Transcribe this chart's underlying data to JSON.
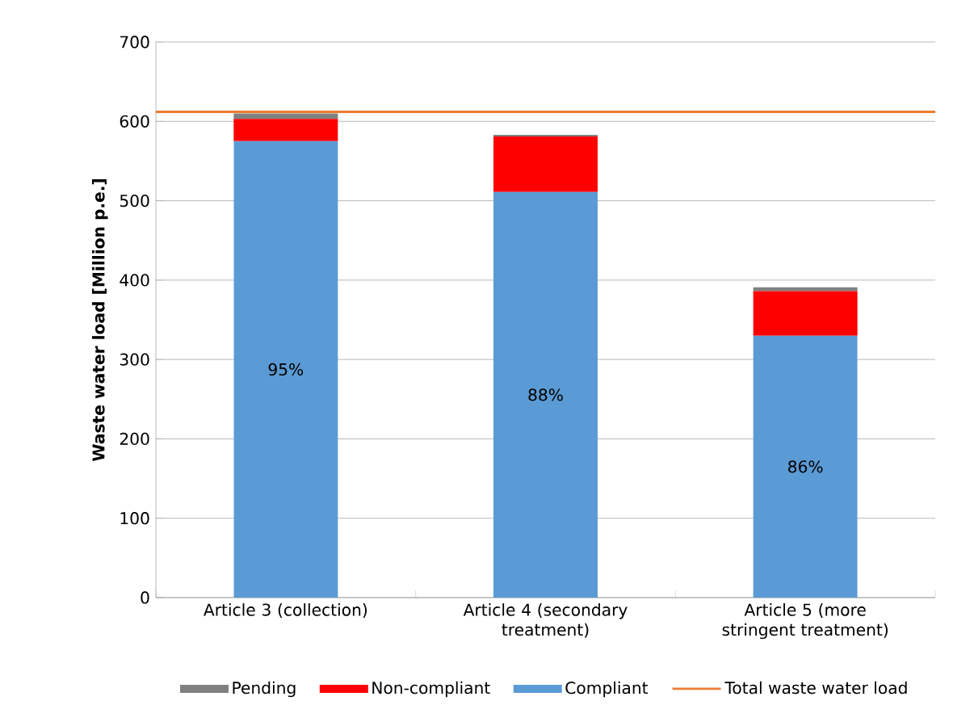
{
  "chart_data": {
    "type": "bar",
    "stacked": true,
    "ylabel": "Waste water load [Million  p.e.]",
    "categories": [
      "Article 3 (collection)",
      "Article 4 (secondary treatment)",
      "Article 5 (more stringent treatment)"
    ],
    "series": [
      {
        "name": "Compliant",
        "color": "#5b9bd5",
        "values": [
          575,
          511,
          330
        ]
      },
      {
        "name": "Non-compliant",
        "color": "#ff0000",
        "values": [
          28,
          70,
          56
        ]
      },
      {
        "name": "Pending",
        "color": "#808080",
        "values": [
          7,
          2,
          5
        ]
      }
    ],
    "ref_lines": [
      {
        "axis": "y",
        "value": 612,
        "label": "Total waste water load",
        "color": "#ed7d31"
      }
    ],
    "ylim": [
      0,
      700
    ],
    "yticks": [
      0,
      100,
      200,
      300,
      400,
      500,
      600,
      700
    ],
    "annotations": [
      "95%",
      "88%",
      "86%"
    ],
    "grid": "y",
    "legend": "bottom"
  }
}
